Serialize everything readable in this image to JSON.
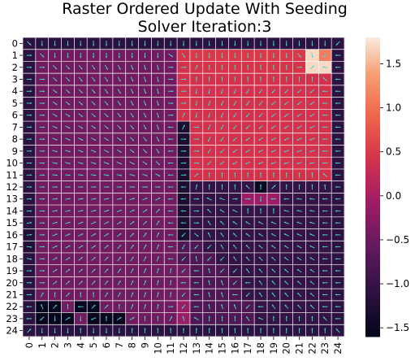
{
  "chart_data": {
    "type": "heatmap",
    "title_line1": "Raster Ordered Update With Seeding",
    "title_line2": "Solver Iteration:3",
    "xlabel": "",
    "ylabel": "",
    "x_ticks": [
      "0",
      "1",
      "2",
      "3",
      "4",
      "5",
      "6",
      "7",
      "8",
      "9",
      "10",
      "11",
      "12",
      "13",
      "14",
      "15",
      "16",
      "17",
      "18",
      "19",
      "20",
      "21",
      "22",
      "23",
      "24"
    ],
    "y_ticks": [
      "0",
      "1",
      "2",
      "3",
      "4",
      "5",
      "6",
      "7",
      "8",
      "9",
      "10",
      "11",
      "12",
      "13",
      "14",
      "15",
      "16",
      "17",
      "18",
      "19",
      "20",
      "21",
      "22",
      "23",
      "24"
    ],
    "colorbar": {
      "range": [
        -1.6,
        1.8
      ],
      "ticks": [
        "1.5",
        "1.0",
        "0.5",
        "0.0",
        "−0.5",
        "−1.0",
        "−1.5"
      ],
      "tick_values": [
        1.5,
        1.0,
        0.5,
        0.0,
        -0.5,
        -1.0,
        -1.5
      ],
      "colormap": "rocket"
    },
    "grid_lines": true,
    "overlay": "quiver",
    "arrow_color": "#40e0d0",
    "rows": [
      [
        -1.1,
        -1.1,
        -1.1,
        -1.1,
        -1.1,
        -1.1,
        -1.1,
        -1.1,
        -1.1,
        -1.1,
        -1.1,
        -1.1,
        -1.1,
        -1.1,
        -1.1,
        -1.1,
        -1.1,
        -1.1,
        -1.1,
        -1.1,
        -1.1,
        -1.1,
        -1.1,
        -1.1,
        -1.1
      ],
      [
        -1.1,
        -0.45,
        -0.45,
        -0.45,
        -0.45,
        -0.45,
        -0.45,
        -0.45,
        -0.45,
        -0.45,
        -0.45,
        -0.45,
        0.45,
        0.5,
        0.5,
        0.5,
        0.5,
        0.5,
        0.5,
        0.5,
        0.5,
        0.5,
        1.7,
        1.1,
        -1.1
      ],
      [
        -1.1,
        -0.45,
        -0.45,
        -0.45,
        -0.45,
        -0.45,
        -0.45,
        -0.45,
        -0.45,
        -0.45,
        -0.45,
        -0.45,
        0.4,
        0.45,
        0.45,
        0.45,
        0.45,
        0.45,
        0.45,
        0.45,
        0.45,
        0.45,
        1.7,
        1.7,
        -1.1
      ],
      [
        -1.1,
        -0.45,
        -0.45,
        -0.45,
        -0.45,
        -0.45,
        -0.45,
        -0.45,
        -0.45,
        -0.45,
        -0.45,
        -0.45,
        0.4,
        0.4,
        0.4,
        0.4,
        0.4,
        0.4,
        0.4,
        0.4,
        0.4,
        0.4,
        0.4,
        0.4,
        -1.1
      ],
      [
        -1.1,
        -0.45,
        -0.45,
        -0.45,
        -0.45,
        -0.45,
        -0.45,
        -0.45,
        -0.45,
        -0.45,
        -0.45,
        -0.45,
        0.4,
        0.4,
        0.4,
        0.4,
        0.4,
        0.4,
        0.4,
        0.4,
        0.4,
        0.4,
        0.4,
        0.4,
        -1.1
      ],
      [
        -1.1,
        -0.45,
        -0.45,
        -0.45,
        -0.45,
        -0.45,
        -0.45,
        -0.45,
        -0.45,
        -0.45,
        -0.45,
        -0.45,
        0.4,
        0.4,
        0.4,
        0.4,
        0.4,
        0.4,
        0.4,
        0.4,
        0.4,
        0.4,
        0.4,
        0.4,
        -1.1
      ],
      [
        -1.1,
        -0.45,
        -0.45,
        -0.45,
        -0.45,
        -0.45,
        -0.45,
        -0.45,
        -0.45,
        -0.45,
        -0.45,
        -0.45,
        0.4,
        0.4,
        0.4,
        0.4,
        0.4,
        0.4,
        0.4,
        0.4,
        0.4,
        0.4,
        0.4,
        0.4,
        -1.1
      ],
      [
        -1.1,
        -0.45,
        -0.45,
        -0.45,
        -0.45,
        -0.45,
        -0.45,
        -0.45,
        -0.45,
        -0.45,
        -0.45,
        -0.45,
        -1.3,
        0.4,
        0.4,
        0.4,
        0.4,
        0.4,
        0.4,
        0.4,
        0.4,
        0.4,
        0.4,
        0.4,
        -1.1
      ],
      [
        -1.1,
        -0.45,
        -0.45,
        -0.45,
        -0.45,
        -0.45,
        -0.45,
        -0.45,
        -0.45,
        -0.45,
        -0.45,
        -0.45,
        -1.3,
        0.4,
        0.4,
        0.4,
        0.4,
        0.4,
        0.4,
        0.4,
        0.4,
        0.4,
        0.4,
        0.4,
        -1.1
      ],
      [
        -1.1,
        -0.45,
        -0.45,
        -0.45,
        -0.45,
        -0.45,
        -0.45,
        -0.45,
        -0.45,
        -0.45,
        -0.45,
        -0.45,
        -1.3,
        0.4,
        0.4,
        0.4,
        0.4,
        0.4,
        0.4,
        0.4,
        0.4,
        0.4,
        0.4,
        0.4,
        -1.1
      ],
      [
        -1.1,
        -0.45,
        -0.45,
        -0.45,
        -0.45,
        -0.45,
        -0.45,
        -0.45,
        -0.45,
        -0.45,
        -0.45,
        -0.45,
        -1.3,
        0.4,
        0.4,
        0.4,
        0.4,
        0.4,
        0.4,
        0.4,
        0.4,
        0.4,
        0.4,
        0.4,
        -1.1
      ],
      [
        -1.1,
        -0.45,
        -0.45,
        -0.45,
        -0.45,
        -0.45,
        -0.45,
        -0.45,
        -0.45,
        -0.45,
        -0.45,
        -0.45,
        -1.3,
        0.4,
        0.4,
        0.4,
        0.4,
        0.4,
        0.4,
        0.4,
        0.4,
        0.4,
        0.4,
        0.4,
        -1.1
      ],
      [
        -1.1,
        -0.45,
        -0.45,
        -0.45,
        -0.45,
        -0.45,
        -0.45,
        -0.45,
        -0.45,
        -0.45,
        -0.45,
        -0.45,
        -1.3,
        -1.0,
        -1.0,
        -1.0,
        -1.0,
        -1.0,
        -1.5,
        -1.0,
        -1.0,
        -1.0,
        -1.0,
        -1.0,
        -1.1
      ],
      [
        -1.1,
        -0.45,
        -0.45,
        -0.45,
        -0.45,
        -0.45,
        -0.45,
        -0.45,
        -0.45,
        -0.45,
        -0.45,
        -0.45,
        -1.3,
        -1.0,
        -1.0,
        -1.0,
        -1.0,
        -0.1,
        -0.1,
        -0.1,
        -1.0,
        -1.0,
        -1.0,
        -1.0,
        -1.1
      ],
      [
        -1.1,
        -0.45,
        -0.45,
        -0.45,
        -0.45,
        -0.45,
        -0.45,
        -0.45,
        -0.45,
        -0.45,
        -0.45,
        -0.45,
        -1.3,
        -1.0,
        -1.0,
        -1.0,
        -1.0,
        -1.0,
        -1.0,
        -1.0,
        -1.0,
        -1.0,
        -1.0,
        -1.0,
        -1.1
      ],
      [
        -1.1,
        -0.45,
        -0.45,
        -0.45,
        -0.45,
        -0.45,
        -0.45,
        -0.45,
        -0.45,
        -0.45,
        -0.45,
        -0.45,
        -1.3,
        -1.0,
        -1.0,
        -1.0,
        -1.0,
        -1.0,
        -1.0,
        -1.0,
        -1.0,
        -1.0,
        -1.0,
        -1.0,
        -1.1
      ],
      [
        -1.2,
        -0.45,
        -0.45,
        -0.45,
        -0.45,
        -0.45,
        -0.45,
        -0.45,
        -0.45,
        -0.45,
        -0.45,
        -0.45,
        -1.3,
        -1.0,
        -1.0,
        -1.0,
        -1.0,
        -1.0,
        -1.0,
        -1.0,
        -1.0,
        -1.0,
        -1.0,
        -1.0,
        -1.1
      ],
      [
        -1.2,
        -0.45,
        -0.45,
        -0.45,
        -0.45,
        -0.45,
        -0.45,
        -0.45,
        -0.45,
        -0.45,
        -0.45,
        -0.45,
        -0.75,
        -0.75,
        -1.0,
        -1.0,
        -1.0,
        -1.0,
        -1.0,
        -1.0,
        -1.0,
        -1.0,
        -1.0,
        -1.0,
        -1.1
      ],
      [
        -1.1,
        -0.45,
        -0.45,
        -0.45,
        -0.45,
        -0.45,
        -0.45,
        -0.45,
        -0.45,
        -0.45,
        -0.45,
        -0.45,
        -0.75,
        -0.75,
        -0.75,
        -1.0,
        -1.0,
        -1.0,
        -1.0,
        -1.0,
        -1.0,
        -1.0,
        -1.0,
        -1.0,
        -1.1
      ],
      [
        -1.1,
        -0.45,
        -0.45,
        -0.45,
        -0.45,
        -0.45,
        -0.45,
        -0.45,
        -0.45,
        -0.45,
        -0.45,
        -0.45,
        -0.45,
        -0.75,
        -0.75,
        -0.75,
        -1.0,
        -1.0,
        -1.0,
        -1.0,
        -1.0,
        -1.0,
        -1.0,
        -1.0,
        -1.1
      ],
      [
        -1.1,
        -0.45,
        -0.45,
        -0.45,
        -0.45,
        -0.45,
        -0.45,
        -0.45,
        -0.45,
        -0.45,
        -0.45,
        -0.45,
        -0.45,
        -0.75,
        -0.75,
        -0.75,
        -0.75,
        -1.0,
        -1.0,
        -1.0,
        -1.0,
        -1.0,
        -1.0,
        -1.0,
        -1.1
      ],
      [
        -1.1,
        -0.45,
        -0.45,
        -0.45,
        -0.45,
        -0.45,
        -0.45,
        -0.45,
        -0.45,
        -0.45,
        -0.45,
        -0.45,
        -0.45,
        -0.75,
        -0.75,
        -0.75,
        -0.75,
        -1.0,
        -1.0,
        -1.0,
        -1.0,
        -1.0,
        -1.0,
        -1.0,
        -1.1
      ],
      [
        -1.1,
        -1.55,
        -1.55,
        -0.45,
        -1.55,
        -1.55,
        -0.45,
        -0.45,
        -0.45,
        -0.45,
        -0.45,
        -0.45,
        -0.1,
        -0.75,
        -0.75,
        -0.75,
        -0.75,
        -0.75,
        -1.0,
        -1.0,
        -1.0,
        -1.0,
        -1.0,
        -1.0,
        -1.1
      ],
      [
        -1.1,
        -1.55,
        -1.55,
        -1.55,
        -0.45,
        -1.55,
        -1.55,
        -1.55,
        -0.45,
        -0.45,
        -0.45,
        -0.45,
        -0.1,
        -0.75,
        -0.75,
        -0.75,
        -0.75,
        -0.75,
        -1.0,
        -1.0,
        -1.0,
        -1.0,
        -1.0,
        -1.0,
        -1.1
      ],
      [
        -1.1,
        -1.1,
        -1.1,
        -1.1,
        -1.1,
        -1.1,
        -1.1,
        -1.1,
        -1.1,
        -1.1,
        -1.1,
        -1.1,
        -1.1,
        -1.1,
        -1.1,
        -1.1,
        -1.1,
        -1.1,
        -1.1,
        -1.1,
        -1.1,
        -1.1,
        -1.1,
        -1.1,
        -1.1
      ]
    ]
  }
}
